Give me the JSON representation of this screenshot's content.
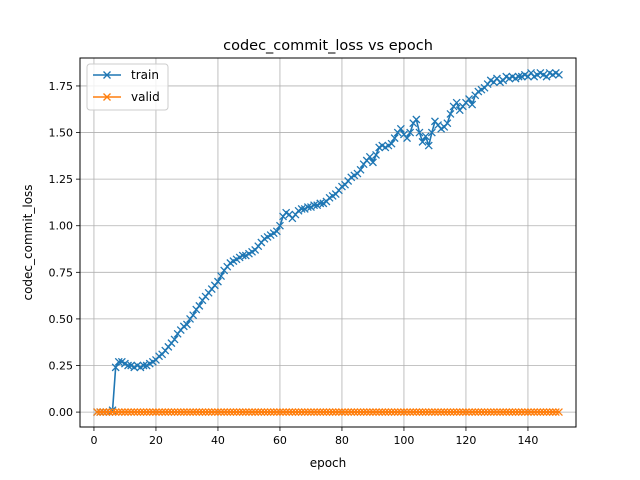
{
  "chart_data": {
    "type": "line",
    "title": "codec_commit_loss vs epoch",
    "xlabel": "epoch",
    "ylabel": "codec_commit_loss",
    "xlim": [
      -4.5,
      155.5
    ],
    "ylim": [
      -0.08,
      1.9
    ],
    "xticks": [
      0,
      20,
      40,
      60,
      80,
      100,
      120,
      140
    ],
    "yticks": [
      0.0,
      0.25,
      0.5,
      0.75,
      1.0,
      1.25,
      1.5,
      1.75
    ],
    "ytick_labels": [
      "0.00",
      "0.25",
      "0.50",
      "0.75",
      "1.00",
      "1.25",
      "1.50",
      "1.75"
    ],
    "grid": true,
    "legend_position": "top-left",
    "marker": "x",
    "series": [
      {
        "name": "train",
        "color": "#1f77b4",
        "x": [
          1,
          2,
          3,
          4,
          5,
          6,
          7,
          8,
          9,
          10,
          11,
          12,
          13,
          14,
          15,
          16,
          17,
          18,
          19,
          20,
          21,
          22,
          23,
          24,
          25,
          26,
          27,
          28,
          29,
          30,
          31,
          32,
          33,
          34,
          35,
          36,
          37,
          38,
          39,
          40,
          41,
          42,
          43,
          44,
          45,
          46,
          47,
          48,
          49,
          50,
          51,
          52,
          53,
          54,
          55,
          56,
          57,
          58,
          59,
          60,
          61,
          62,
          63,
          64,
          65,
          66,
          67,
          68,
          69,
          70,
          71,
          72,
          73,
          74,
          75,
          76,
          77,
          78,
          79,
          80,
          81,
          82,
          83,
          84,
          85,
          86,
          87,
          88,
          89,
          90,
          91,
          92,
          93,
          94,
          95,
          96,
          97,
          98,
          99,
          100,
          101,
          102,
          103,
          104,
          105,
          106,
          107,
          108,
          109,
          110,
          111,
          112,
          113,
          114,
          115,
          116,
          117,
          118,
          119,
          120,
          121,
          122,
          123,
          124,
          125,
          126,
          127,
          128,
          129,
          130,
          131,
          132,
          133,
          134,
          135,
          136,
          137,
          138,
          139,
          140,
          141,
          142,
          143,
          144,
          145,
          146,
          147,
          148,
          149,
          150
        ],
        "y": [
          0.0,
          0.0,
          0.0,
          0.0,
          0.0,
          0.01,
          0.24,
          0.27,
          0.27,
          0.26,
          0.25,
          0.25,
          0.24,
          0.25,
          0.24,
          0.25,
          0.25,
          0.26,
          0.27,
          0.28,
          0.3,
          0.31,
          0.33,
          0.35,
          0.37,
          0.39,
          0.42,
          0.44,
          0.46,
          0.47,
          0.5,
          0.52,
          0.55,
          0.57,
          0.6,
          0.62,
          0.64,
          0.66,
          0.68,
          0.7,
          0.73,
          0.76,
          0.78,
          0.8,
          0.81,
          0.82,
          0.83,
          0.84,
          0.84,
          0.85,
          0.86,
          0.87,
          0.89,
          0.91,
          0.93,
          0.94,
          0.95,
          0.96,
          0.97,
          1.0,
          1.05,
          1.07,
          1.06,
          1.04,
          1.06,
          1.08,
          1.09,
          1.09,
          1.1,
          1.1,
          1.11,
          1.11,
          1.12,
          1.12,
          1.13,
          1.15,
          1.16,
          1.17,
          1.19,
          1.21,
          1.22,
          1.24,
          1.26,
          1.27,
          1.28,
          1.3,
          1.33,
          1.35,
          1.37,
          1.34,
          1.38,
          1.42,
          1.43,
          1.42,
          1.43,
          1.44,
          1.47,
          1.5,
          1.52,
          1.49,
          1.47,
          1.5,
          1.55,
          1.57,
          1.5,
          1.45,
          1.48,
          1.43,
          1.5,
          1.56,
          1.54,
          1.52,
          1.53,
          1.55,
          1.6,
          1.64,
          1.66,
          1.62,
          1.64,
          1.66,
          1.68,
          1.65,
          1.7,
          1.72,
          1.73,
          1.74,
          1.76,
          1.78,
          1.77,
          1.79,
          1.77,
          1.78,
          1.8,
          1.79,
          1.8,
          1.79,
          1.8,
          1.8,
          1.81,
          1.8,
          1.82,
          1.8,
          1.81,
          1.82,
          1.81,
          1.8,
          1.82,
          1.81,
          1.82,
          1.81
        ]
      },
      {
        "name": "valid",
        "color": "#ff7f0e",
        "x": [
          1,
          2,
          3,
          4,
          5,
          6,
          7,
          8,
          9,
          10,
          11,
          12,
          13,
          14,
          15,
          16,
          17,
          18,
          19,
          20,
          21,
          22,
          23,
          24,
          25,
          26,
          27,
          28,
          29,
          30,
          31,
          32,
          33,
          34,
          35,
          36,
          37,
          38,
          39,
          40,
          41,
          42,
          43,
          44,
          45,
          46,
          47,
          48,
          49,
          50,
          51,
          52,
          53,
          54,
          55,
          56,
          57,
          58,
          59,
          60,
          61,
          62,
          63,
          64,
          65,
          66,
          67,
          68,
          69,
          70,
          71,
          72,
          73,
          74,
          75,
          76,
          77,
          78,
          79,
          80,
          81,
          82,
          83,
          84,
          85,
          86,
          87,
          88,
          89,
          90,
          91,
          92,
          93,
          94,
          95,
          96,
          97,
          98,
          99,
          100,
          101,
          102,
          103,
          104,
          105,
          106,
          107,
          108,
          109,
          110,
          111,
          112,
          113,
          114,
          115,
          116,
          117,
          118,
          119,
          120,
          121,
          122,
          123,
          124,
          125,
          126,
          127,
          128,
          129,
          130,
          131,
          132,
          133,
          134,
          135,
          136,
          137,
          138,
          139,
          140,
          141,
          142,
          143,
          144,
          145,
          146,
          147,
          148,
          149,
          150
        ],
        "y": [
          0,
          0,
          0,
          0,
          0,
          0,
          0,
          0,
          0,
          0,
          0,
          0,
          0,
          0,
          0,
          0,
          0,
          0,
          0,
          0,
          0,
          0,
          0,
          0,
          0,
          0,
          0,
          0,
          0,
          0,
          0,
          0,
          0,
          0,
          0,
          0,
          0,
          0,
          0,
          0,
          0,
          0,
          0,
          0,
          0,
          0,
          0,
          0,
          0,
          0,
          0,
          0,
          0,
          0,
          0,
          0,
          0,
          0,
          0,
          0,
          0,
          0,
          0,
          0,
          0,
          0,
          0,
          0,
          0,
          0,
          0,
          0,
          0,
          0,
          0,
          0,
          0,
          0,
          0,
          0,
          0,
          0,
          0,
          0,
          0,
          0,
          0,
          0,
          0,
          0,
          0,
          0,
          0,
          0,
          0,
          0,
          0,
          0,
          0,
          0,
          0,
          0,
          0,
          0,
          0,
          0,
          0,
          0,
          0,
          0,
          0,
          0,
          0,
          0,
          0,
          0,
          0,
          0,
          0,
          0,
          0,
          0,
          0,
          0,
          0,
          0,
          0,
          0,
          0,
          0,
          0,
          0,
          0,
          0,
          0,
          0,
          0,
          0,
          0,
          0,
          0,
          0,
          0,
          0,
          0,
          0,
          0,
          0,
          0,
          0
        ]
      }
    ]
  }
}
